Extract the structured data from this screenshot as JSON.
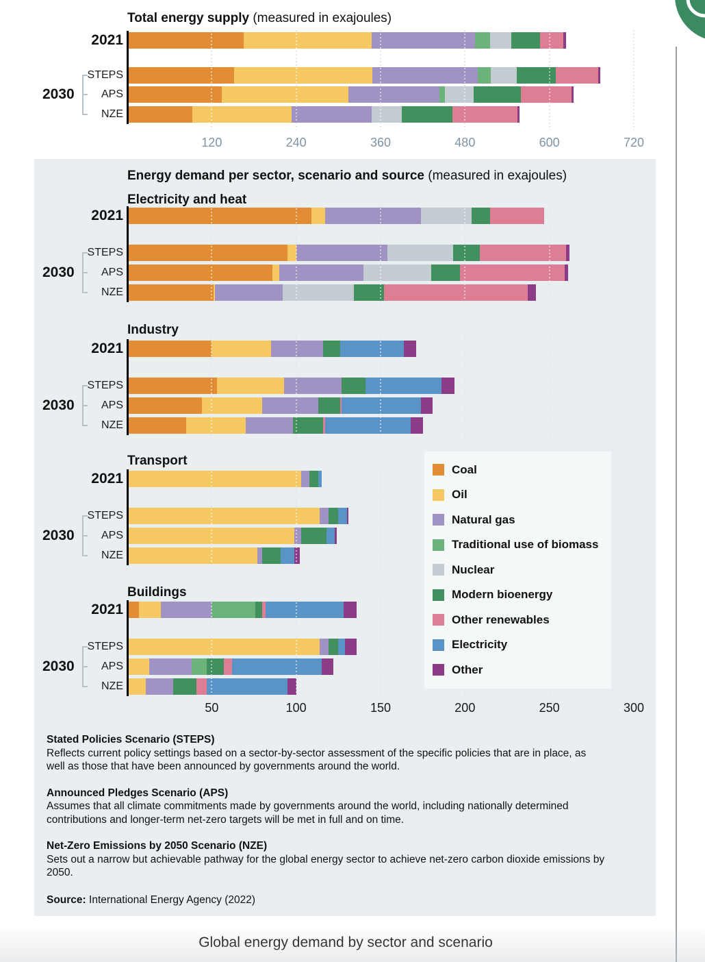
{
  "top_chart_heading": {
    "title": "Total energy supply",
    "suffix": " (measured in exajoules)"
  },
  "panel_heading": {
    "title": "Energy demand per sector, scenario and source",
    "suffix": " (measured in exajoules)"
  },
  "caption": "Global energy demand by sector and scenario",
  "source": {
    "label": "Source:",
    "text": " International Energy Agency (2022)"
  },
  "notes": [
    {
      "head": "Stated Policies Scenario (STEPS)",
      "body": "Reflects current policy settings based on a sector-by-sector assessment of the specific policies that are in place, as well as those that have been announced by governments around the world."
    },
    {
      "head": "Announced Pledges Scenario (APS)",
      "body": "Assumes that all climate commitments made by governments around the world, including nationally determined contributions and longer-term net-zero targets will be met in full and on time."
    },
    {
      "head": "Net-Zero Emissions by 2050 Scenario (NZE)",
      "body": "Sets out a narrow but achievable pathway for the global energy sector to achieve net-zero carbon dioxide emissions by 2050."
    }
  ],
  "sources": [
    {
      "key": "coal",
      "label": "Coal",
      "color": "#E28D33"
    },
    {
      "key": "oil",
      "label": "Oil",
      "color": "#F6C861"
    },
    {
      "key": "natural-gas",
      "label": "Natural gas",
      "color": "#A192C4"
    },
    {
      "key": "traditional-biomass",
      "label": "Traditional use of biomass",
      "color": "#6CB37B"
    },
    {
      "key": "nuclear",
      "label": "Nuclear",
      "color": "#C3CCD3"
    },
    {
      "key": "modern-bioenergy",
      "label": "Modern bioenergy",
      "color": "#43905F"
    },
    {
      "key": "other-renewables",
      "label": "Other renewables",
      "color": "#DD7E95"
    },
    {
      "key": "electricity",
      "label": "Electricity",
      "color": "#5A93C5"
    },
    {
      "key": "other",
      "label": "Other",
      "color": "#8A3C87"
    }
  ],
  "sector_axis": {
    "max": 300,
    "ticks": [
      50,
      100,
      150,
      200,
      250,
      300
    ]
  },
  "chart_data": [
    {
      "id": "total",
      "type": "bar",
      "title": "Total energy supply",
      "unit": "exajoules",
      "group_label": "2030",
      "axis": {
        "max": 720,
        "ticks": [
          120,
          240,
          360,
          480,
          600,
          720
        ]
      },
      "categories": [
        "2021",
        "STEPS",
        "APS",
        "NZE"
      ],
      "series_order": [
        "coal",
        "oil",
        "natural-gas",
        "traditional-biomass",
        "nuclear",
        "modern-bioenergy",
        "other-renewables",
        "electricity",
        "other"
      ],
      "rows": [
        {
          "label": "2021",
          "values": [
            165,
            182,
            147,
            22,
            30,
            41,
            33,
            0,
            4
          ]
        },
        {
          "label": "STEPS",
          "values": [
            152,
            196,
            150,
            19,
            37,
            55,
            60,
            0,
            3
          ]
        },
        {
          "label": "APS",
          "values": [
            134,
            180,
            130,
            7,
            41,
            67,
            72,
            0,
            3
          ]
        },
        {
          "label": "NZE",
          "values": [
            92,
            142,
            113,
            0,
            43,
            72,
            93,
            0,
            3
          ]
        }
      ]
    },
    {
      "id": "electricity-heat",
      "type": "bar",
      "title": "Electricity and heat",
      "unit": "exajoules",
      "group_label": "2030",
      "axis": {
        "max": 300,
        "ticks": [
          50,
          100,
          150,
          200,
          250,
          300
        ]
      },
      "categories": [
        "2021",
        "STEPS",
        "APS",
        "NZE"
      ],
      "series_order": [
        "coal",
        "oil",
        "natural-gas",
        "traditional-biomass",
        "nuclear",
        "modern-bioenergy",
        "other-renewables",
        "electricity",
        "other"
      ],
      "rows": [
        {
          "label": "2021",
          "values": [
            109,
            8,
            57,
            0,
            30,
            11,
            32,
            0,
            0
          ]
        },
        {
          "label": "STEPS",
          "values": [
            95,
            5,
            54,
            0,
            39,
            16,
            51,
            0,
            2
          ]
        },
        {
          "label": "APS",
          "values": [
            86,
            4,
            50,
            0,
            40,
            17,
            62,
            0,
            2
          ]
        },
        {
          "label": "NZE",
          "values": [
            51,
            1,
            40,
            0,
            42,
            18,
            85,
            0,
            5
          ]
        }
      ]
    },
    {
      "id": "industry",
      "type": "bar",
      "title": "Industry",
      "unit": "exajoules",
      "group_label": "2030",
      "axis": {
        "max": 300,
        "ticks": [
          50,
          100,
          150,
          200,
          250,
          300
        ]
      },
      "categories": [
        "2021",
        "STEPS",
        "APS",
        "NZE"
      ],
      "series_order": [
        "coal",
        "oil",
        "natural-gas",
        "traditional-biomass",
        "nuclear",
        "modern-bioenergy",
        "other-renewables",
        "electricity",
        "other"
      ],
      "rows": [
        {
          "label": "2021",
          "values": [
            50,
            35,
            31,
            0,
            0,
            10,
            0,
            38,
            7
          ]
        },
        {
          "label": "STEPS",
          "values": [
            53,
            40,
            34,
            0,
            0,
            14,
            0,
            45,
            8
          ]
        },
        {
          "label": "APS",
          "values": [
            44,
            36,
            33,
            0,
            0,
            13,
            1,
            47,
            7
          ]
        },
        {
          "label": "NZE",
          "values": [
            35,
            35,
            28,
            0,
            0,
            18,
            1,
            51,
            7
          ]
        }
      ]
    },
    {
      "id": "transport",
      "type": "bar",
      "title": "Transport",
      "unit": "exajoules",
      "group_label": "2030",
      "axis": {
        "max": 300,
        "ticks": [
          50,
          100,
          150,
          200,
          250,
          300
        ]
      },
      "categories": [
        "2021",
        "STEPS",
        "APS",
        "NZE"
      ],
      "series_order": [
        "coal",
        "oil",
        "natural-gas",
        "traditional-biomass",
        "nuclear",
        "modern-bioenergy",
        "other-renewables",
        "electricity",
        "other"
      ],
      "rows": [
        {
          "label": "2021",
          "values": [
            0,
            103,
            5,
            0,
            0,
            5,
            0,
            2,
            0
          ]
        },
        {
          "label": "STEPS",
          "values": [
            0,
            114,
            5,
            0,
            0,
            6,
            0,
            5,
            1
          ]
        },
        {
          "label": "APS",
          "values": [
            0,
            99,
            4,
            0,
            0,
            15,
            0,
            5,
            1
          ]
        },
        {
          "label": "NZE",
          "values": [
            0,
            77,
            3,
            0,
            0,
            11,
            0,
            8,
            3
          ]
        }
      ]
    },
    {
      "id": "buildings",
      "type": "bar",
      "title": "Buildings",
      "unit": "exajoules",
      "group_label": "2030",
      "axis": {
        "max": 300,
        "ticks": [
          50,
          100,
          150,
          200,
          250,
          300
        ]
      },
      "categories": [
        "2021",
        "STEPS",
        "APS",
        "NZE"
      ],
      "series_order": [
        "coal",
        "oil",
        "natural-gas",
        "traditional-biomass",
        "nuclear",
        "modern-bioenergy",
        "other-renewables",
        "electricity",
        "other"
      ],
      "rows": [
        {
          "label": "2021",
          "values": [
            7,
            13,
            30,
            26,
            0,
            4,
            2,
            46,
            8
          ]
        },
        {
          "label": "STEPS",
          "values": [
            0,
            114,
            5,
            0,
            0,
            6,
            0,
            4,
            7
          ]
        },
        {
          "label": "APS",
          "values": [
            0,
            13,
            25,
            9,
            0,
            10,
            5,
            53,
            7
          ]
        },
        {
          "label": "NZE",
          "values": [
            0,
            11,
            16,
            0,
            0,
            14,
            6,
            48,
            5
          ]
        }
      ]
    }
  ]
}
